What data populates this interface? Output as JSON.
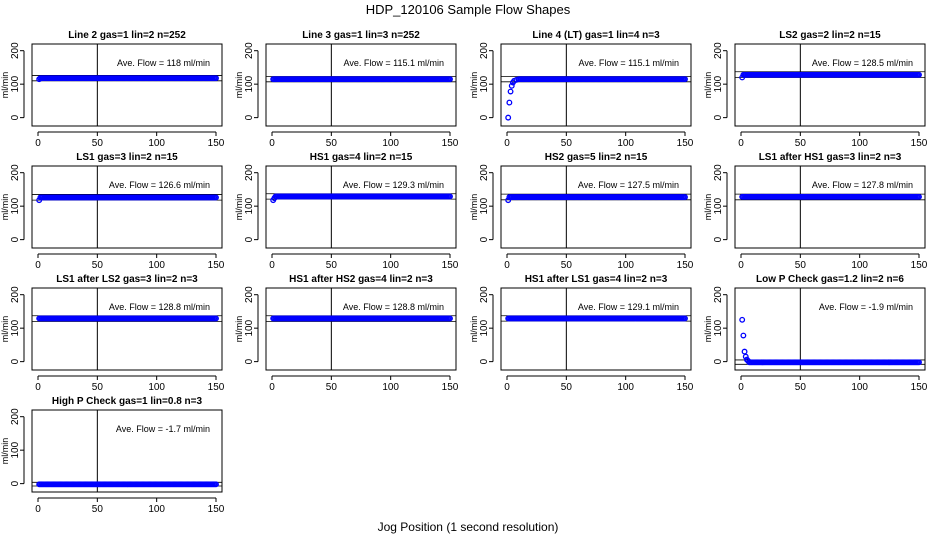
{
  "figure": {
    "title": "HDP_120106  Sample Flow Shapes",
    "xlabel": "Jog Position (1 second resolution)",
    "point_color": "#0000ff",
    "line_color": "#000000"
  },
  "chart_data": [
    {
      "type": "scatter",
      "title": "Line 2 gas=1 lin=2 n=252",
      "ylabel": "ml/min",
      "annotation": "Ave. Flow =  118  ml/min",
      "xlim": [
        0,
        150
      ],
      "ylim": [
        -25,
        220
      ],
      "xticks": [
        0,
        50,
        100,
        150
      ],
      "yticks": [
        0,
        100,
        200
      ],
      "vline_x": 50,
      "hlines": [
        110,
        126
      ],
      "series": [
        {
          "x": [
            1
          ],
          "y": [
            115
          ]
        },
        {
          "x_range": [
            2,
            150
          ],
          "y": 118
        }
      ]
    },
    {
      "type": "scatter",
      "title": "Line 3 gas=1 lin=3 n=252",
      "ylabel": "ml/min",
      "annotation": "Ave. Flow =  115.1  ml/min",
      "xlim": [
        0,
        150
      ],
      "ylim": [
        -25,
        220
      ],
      "xticks": [
        0,
        50,
        100,
        150
      ],
      "yticks": [
        0,
        100,
        200
      ],
      "vline_x": 50,
      "hlines": [
        107,
        123
      ],
      "series": [
        {
          "x_range": [
            1,
            150
          ],
          "y": 115
        }
      ]
    },
    {
      "type": "scatter",
      "title": "Line 4 (LT) gas=1 lin=4 n=3",
      "ylabel": "ml/min",
      "annotation": "Ave. Flow =  115.1  ml/min",
      "xlim": [
        0,
        150
      ],
      "ylim": [
        -25,
        220
      ],
      "xticks": [
        0,
        50,
        100,
        150
      ],
      "yticks": [
        0,
        100,
        200
      ],
      "vline_x": 50,
      "hlines": [
        107,
        123
      ],
      "series": [
        {
          "x": [
            1,
            2,
            3,
            4,
            5,
            6,
            8
          ],
          "y": [
            0,
            45,
            78,
            95,
            105,
            110,
            113
          ]
        },
        {
          "x_range": [
            10,
            150
          ],
          "y": 115
        }
      ]
    },
    {
      "type": "scatter",
      "title": "LS2 gas=2 lin=2 n=15",
      "ylabel": "ml/min",
      "annotation": "Ave. Flow =  128.5  ml/min",
      "xlim": [
        0,
        150
      ],
      "ylim": [
        -25,
        220
      ],
      "xticks": [
        0,
        50,
        100,
        150
      ],
      "yticks": [
        0,
        100,
        200
      ],
      "vline_x": 50,
      "hlines": [
        120,
        137
      ],
      "series": [
        {
          "x": [
            1
          ],
          "y": [
            120
          ]
        },
        {
          "x_range": [
            2,
            150
          ],
          "y": 128
        }
      ]
    },
    {
      "type": "scatter",
      "title": "LS1 gas=3 lin=2 n=15",
      "ylabel": "ml/min",
      "annotation": "Ave. Flow =  126.6  ml/min",
      "xlim": [
        0,
        150
      ],
      "ylim": [
        -25,
        220
      ],
      "xticks": [
        0,
        50,
        100,
        150
      ],
      "yticks": [
        0,
        100,
        200
      ],
      "vline_x": 50,
      "hlines": [
        118,
        135
      ],
      "series": [
        {
          "x": [
            1
          ],
          "y": [
            118
          ]
        },
        {
          "x_range": [
            2,
            150
          ],
          "y": 126
        }
      ]
    },
    {
      "type": "scatter",
      "title": "HS1 gas=4 lin=2 n=15",
      "ylabel": "ml/min",
      "annotation": "Ave. Flow =  129.3  ml/min",
      "xlim": [
        0,
        150
      ],
      "ylim": [
        -25,
        220
      ],
      "xticks": [
        0,
        50,
        100,
        150
      ],
      "yticks": [
        0,
        100,
        200
      ],
      "vline_x": 50,
      "hlines": [
        121,
        137
      ],
      "series": [
        {
          "x": [
            1,
            2
          ],
          "y": [
            118,
            124
          ]
        },
        {
          "x_range": [
            3,
            150
          ],
          "y": 129
        }
      ]
    },
    {
      "type": "scatter",
      "title": "HS2 gas=5 lin=2 n=15",
      "ylabel": "ml/min",
      "annotation": "Ave. Flow =  127.5  ml/min",
      "xlim": [
        0,
        150
      ],
      "ylim": [
        -25,
        220
      ],
      "xticks": [
        0,
        50,
        100,
        150
      ],
      "yticks": [
        0,
        100,
        200
      ],
      "vline_x": 50,
      "hlines": [
        119,
        136
      ],
      "series": [
        {
          "x": [
            1
          ],
          "y": [
            118
          ]
        },
        {
          "x_range": [
            2,
            150
          ],
          "y": 127
        }
      ]
    },
    {
      "type": "scatter",
      "title": "LS1 after HS1 gas=3 lin=2 n=3",
      "ylabel": "ml/min",
      "annotation": "Ave. Flow =  127.8  ml/min",
      "xlim": [
        0,
        150
      ],
      "ylim": [
        -25,
        220
      ],
      "xticks": [
        0,
        50,
        100,
        150
      ],
      "yticks": [
        0,
        100,
        200
      ],
      "vline_x": 50,
      "hlines": [
        119,
        136
      ],
      "series": [
        {
          "x_range": [
            1,
            150
          ],
          "y": 128
        }
      ]
    },
    {
      "type": "scatter",
      "title": "LS1 after LS2 gas=3 lin=2 n=3",
      "ylabel": "ml/min",
      "annotation": "Ave. Flow =  128.8  ml/min",
      "xlim": [
        0,
        150
      ],
      "ylim": [
        -25,
        220
      ],
      "xticks": [
        0,
        50,
        100,
        150
      ],
      "yticks": [
        0,
        100,
        200
      ],
      "vline_x": 50,
      "hlines": [
        120,
        137
      ],
      "series": [
        {
          "x_range": [
            1,
            150
          ],
          "y": 129
        }
      ]
    },
    {
      "type": "scatter",
      "title": "HS1 after HS2 gas=4 lin=2 n=3",
      "ylabel": "ml/min",
      "annotation": "Ave. Flow =  128.8  ml/min",
      "xlim": [
        0,
        150
      ],
      "ylim": [
        -25,
        220
      ],
      "xticks": [
        0,
        50,
        100,
        150
      ],
      "yticks": [
        0,
        100,
        200
      ],
      "vline_x": 50,
      "hlines": [
        120,
        137
      ],
      "series": [
        {
          "x_range": [
            1,
            150
          ],
          "y": 129
        }
      ]
    },
    {
      "type": "scatter",
      "title": "HS1 after LS1 gas=4 lin=2 n=3",
      "ylabel": "ml/min",
      "annotation": "Ave. Flow =  129.1  ml/min",
      "xlim": [
        0,
        150
      ],
      "ylim": [
        -25,
        220
      ],
      "xticks": [
        0,
        50,
        100,
        150
      ],
      "yticks": [
        0,
        100,
        200
      ],
      "vline_x": 50,
      "hlines": [
        121,
        137
      ],
      "series": [
        {
          "x_range": [
            1,
            150
          ],
          "y": 129
        }
      ]
    },
    {
      "type": "scatter",
      "title": "Low P Check gas=1.2 lin=2 n=6",
      "ylabel": "ml/min",
      "annotation": "Ave. Flow =  -1.9  ml/min",
      "xlim": [
        0,
        150
      ],
      "ylim": [
        -25,
        220
      ],
      "xticks": [
        0,
        50,
        100,
        150
      ],
      "yticks": [
        0,
        100,
        200
      ],
      "vline_x": 50,
      "hlines": [
        -8,
        5
      ],
      "series": [
        {
          "x": [
            1,
            2,
            3,
            4,
            5,
            6
          ],
          "y": [
            125,
            78,
            30,
            15,
            6,
            2
          ]
        },
        {
          "x_range": [
            7,
            150
          ],
          "y": -2
        }
      ]
    },
    {
      "type": "scatter",
      "title": "High P Check gas=1 lin=0.8 n=3",
      "ylabel": "ml/min",
      "annotation": "Ave. Flow =  -1.7  ml/min",
      "xlim": [
        0,
        150
      ],
      "ylim": [
        -25,
        220
      ],
      "xticks": [
        0,
        50,
        100,
        150
      ],
      "yticks": [
        0,
        100,
        200
      ],
      "vline_x": 50,
      "hlines": [
        -7,
        4
      ],
      "series": [
        {
          "x_range": [
            1,
            150
          ],
          "y": -2
        }
      ]
    }
  ]
}
